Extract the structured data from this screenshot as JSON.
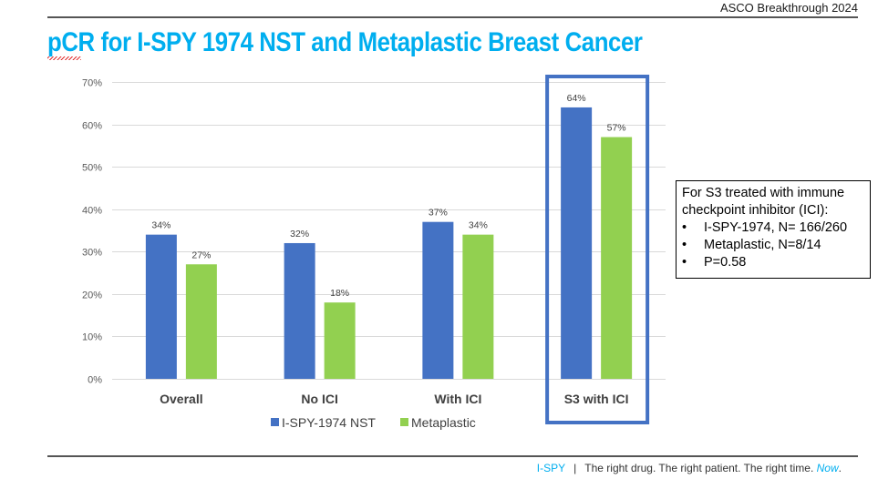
{
  "header": {
    "tag": "ASCO Breakthrough 2024"
  },
  "title": "pCR for I-SPY 1974 NST and Metaplastic Breast Cancer",
  "chart_data": {
    "type": "bar",
    "title": "",
    "xlabel": "",
    "ylabel": "",
    "categories": [
      "Overall",
      "No ICI",
      "With ICI",
      "S3 with ICI"
    ],
    "series": [
      {
        "name": "I-SPY-1974 NST",
        "color": "#4472c4",
        "values": [
          34,
          32,
          37,
          64
        ],
        "labels": [
          "34%",
          "32%",
          "37%",
          "64%"
        ]
      },
      {
        "name": "Metaplastic",
        "color": "#92d050",
        "values": [
          27,
          18,
          34,
          57
        ],
        "labels": [
          "27%",
          "18%",
          "34%",
          "57%"
        ]
      }
    ],
    "ylim": [
      0,
      70
    ],
    "yticks": [
      0,
      10,
      20,
      30,
      40,
      50,
      60,
      70
    ],
    "ytick_labels": [
      "0%",
      "10%",
      "20%",
      "30%",
      "40%",
      "50%",
      "60%",
      "70%"
    ],
    "grid": true,
    "legend": "bottom",
    "highlighted_category": "S3 with ICI",
    "highlight_color": "#4472c4"
  },
  "info_box": {
    "heading": "For S3 treated with immune checkpoint inhibitor (ICI):",
    "bullets": [
      "I-SPY-1974, N= 166/260",
      "Metaplastic, N=8/14",
      "P=0.58"
    ]
  },
  "footer": {
    "brand": "I-SPY",
    "separator": "|",
    "tagline": "The right drug. The right patient. The right time.",
    "emphasis": "Now",
    "end": "."
  }
}
